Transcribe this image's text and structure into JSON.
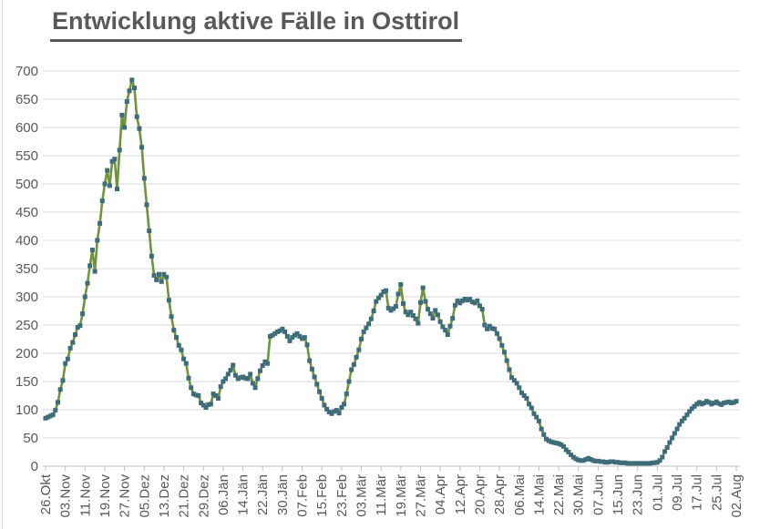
{
  "title": "Entwicklung aktive Fälle in Osttirol",
  "chart_data": {
    "type": "line",
    "title": "Entwicklung aktive Fälle in Osttirol",
    "xlabel": "",
    "ylabel": "",
    "ylim": [
      0,
      700
    ],
    "y_ticks": [
      0,
      50,
      100,
      150,
      200,
      250,
      300,
      350,
      400,
      450,
      500,
      550,
      600,
      650,
      700
    ],
    "grid": "horizontal",
    "legend": "none",
    "x_tick_labels": [
      "26.Okt",
      "03.Nov",
      "11.Nov",
      "19.Nov",
      "27.Nov",
      "05.Dez",
      "13.Dez",
      "21.Dez",
      "29.Dez",
      "06.Jän",
      "14.Jän",
      "22.Jän",
      "30.Jän",
      "07.Feb",
      "15.Feb",
      "23.Feb",
      "03.Mär",
      "11.Mär",
      "19.Mär",
      "27.Mär",
      "04.Apr",
      "12.Apr",
      "20.Apr",
      "28.Apr",
      "06.Mai",
      "14.Mai",
      "22.Mai",
      "30.Mai",
      "07.Jun",
      "15.Jun",
      "23.Jun",
      "01.Jul",
      "09.Jul",
      "17.Jul",
      "25.Jul",
      "02.Aug"
    ],
    "points_per_tick_interval": 8,
    "sampling": "daily values, estimated from plot",
    "series": [
      {
        "name": "aktive Fälle",
        "values": [
          85,
          87,
          89,
          91,
          99,
          113,
          136,
          152,
          182,
          190,
          209,
          219,
          233,
          246,
          249,
          270,
          300,
          324,
          355,
          383,
          345,
          400,
          430,
          470,
          500,
          524,
          497,
          540,
          544,
          491,
          560,
          622,
          600,
          646,
          665,
          684,
          670,
          619,
          598,
          565,
          510,
          463,
          417,
          372,
          338,
          330,
          340,
          327,
          340,
          335,
          294,
          265,
          241,
          228,
          214,
          206,
          190,
          182,
          156,
          139,
          128,
          126,
          125,
          112,
          108,
          104,
          109,
          110,
          128,
          125,
          120,
          141,
          150,
          155,
          163,
          170,
          179,
          161,
          155,
          157,
          158,
          156,
          155,
          163,
          147,
          139,
          155,
          169,
          178,
          185,
          182,
          230,
          232,
          235,
          238,
          240,
          243,
          238,
          230,
          222,
          228,
          232,
          235,
          230,
          226,
          228,
          215,
          187,
          172,
          158,
          145,
          132,
          120,
          108,
          101,
          96,
          93,
          97,
          99,
          94,
          104,
          110,
          128,
          150,
          171,
          180,
          193,
          206,
          225,
          238,
          245,
          252,
          261,
          275,
          292,
          298,
          303,
          309,
          311,
          280,
          276,
          279,
          283,
          305,
          322,
          288,
          273,
          268,
          273,
          267,
          261,
          253,
          290,
          316,
          292,
          278,
          270,
          262,
          276,
          268,
          256,
          247,
          241,
          233,
          248,
          262,
          285,
          293,
          289,
          293,
          296,
          294,
          296,
          291,
          289,
          293,
          284,
          278,
          250,
          243,
          248,
          244,
          243,
          235,
          226,
          214,
          202,
          187,
          171,
          157,
          152,
          147,
          139,
          130,
          125,
          120,
          110,
          103,
          93,
          87,
          80,
          66,
          56,
          48,
          45,
          43,
          42,
          41,
          40,
          38,
          35,
          29,
          25,
          20,
          16,
          13,
          11,
          10,
          10,
          12,
          14,
          12,
          10,
          9,
          9,
          8,
          8,
          7,
          7,
          8,
          8,
          7,
          7,
          6,
          6,
          6,
          5,
          5,
          5,
          5,
          5,
          5,
          5,
          5,
          5,
          5,
          6,
          6,
          7,
          10,
          16,
          26,
          33,
          42,
          50,
          58,
          66,
          74,
          80,
          85,
          91,
          97,
          102,
          106,
          110,
          113,
          110,
          112,
          115,
          113,
          110,
          112,
          114,
          111,
          109,
          112,
          113,
          114,
          112,
          113,
          115
        ]
      }
    ],
    "colors": {
      "line": "#70943c",
      "marker": "#3e6c79",
      "grid": "#d9d9d9",
      "axis": "#bfbfbf",
      "axis_text": "#595959",
      "title": "#595959",
      "background": "#ffffff"
    }
  }
}
